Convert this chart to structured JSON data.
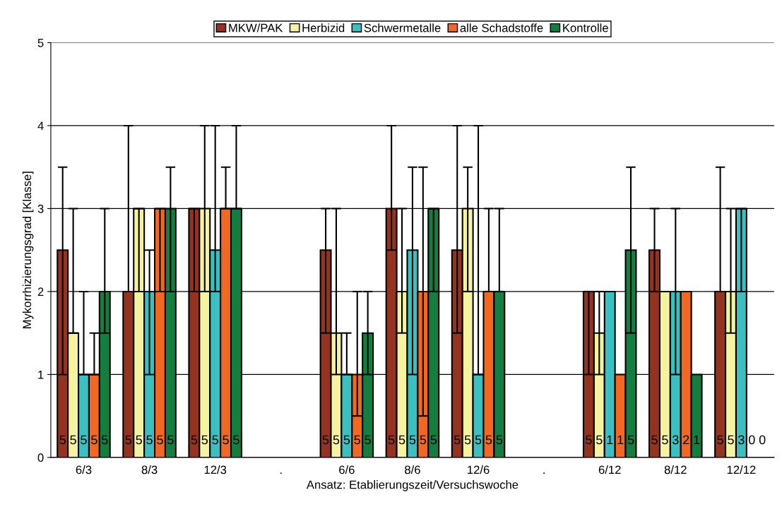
{
  "chart_data": {
    "type": "bar",
    "categories": [
      "6/3",
      "8/3",
      "12/3",
      ".",
      "6/6",
      "8/6",
      "12/6",
      ".",
      "6/12",
      "8/12",
      "12/12"
    ],
    "xlabel": "Ansatz: Etablierungszeit/Versuchswoche",
    "ylabel": "Mykorrhizierungsgrad [Klasse]",
    "ylim": [
      0,
      5
    ],
    "yticks": [
      0,
      1,
      2,
      3,
      4,
      5
    ],
    "grid": "y",
    "legend": "top",
    "series": [
      {
        "name": "MKW/PAK",
        "color": "#943420",
        "values": [
          2.5,
          2,
          3,
          null,
          2.5,
          3,
          2.5,
          null,
          2,
          2.5,
          2
        ],
        "errors": [
          [
            1,
            3.5
          ],
          [
            2,
            4
          ],
          [
            2,
            3
          ],
          null,
          [
            1.5,
            3
          ],
          [
            2.5,
            4
          ],
          [
            1.5,
            4
          ],
          null,
          [
            1,
            2
          ],
          [
            2,
            3
          ],
          [
            2,
            3.5
          ]
        ]
      },
      {
        "name": "Herbizid",
        "color": "#f5f2a0",
        "values": [
          1.5,
          3,
          3,
          null,
          1.5,
          2,
          3,
          null,
          1.5,
          2,
          2
        ],
        "errors": [
          [
            1.5,
            3
          ],
          [
            2,
            3
          ],
          [
            2,
            4
          ],
          null,
          [
            1,
            3
          ],
          [
            1.5,
            3
          ],
          [
            2,
            3.5
          ],
          null,
          [
            1,
            2
          ],
          null,
          [
            1.5,
            3
          ]
        ]
      },
      {
        "name": "Schwermetalle",
        "color": "#3cbfc0",
        "values": [
          1,
          2,
          2.5,
          null,
          1,
          2.5,
          1,
          null,
          2,
          2,
          3
        ],
        "errors": [
          [
            1,
            2
          ],
          [
            1,
            2.5
          ],
          [
            2,
            4
          ],
          null,
          [
            1,
            1.5
          ],
          [
            1,
            3.5
          ],
          [
            1,
            4
          ],
          null,
          null,
          [
            1,
            3
          ],
          [
            2,
            3
          ]
        ]
      },
      {
        "name": "alle Schadstoffe",
        "color": "#f26722",
        "values": [
          1,
          3,
          3,
          null,
          1,
          2,
          2,
          null,
          1,
          2,
          null
        ],
        "errors": [
          [
            1,
            1.5
          ],
          [
            2,
            3
          ],
          [
            3,
            3.5
          ],
          null,
          [
            0.5,
            2
          ],
          [
            0.5,
            3.5
          ],
          [
            2,
            3
          ],
          null,
          null,
          null,
          null
        ]
      },
      {
        "name": "Kontrolle",
        "color": "#137e3f",
        "values": [
          2,
          3,
          3,
          null,
          1.5,
          3,
          2,
          null,
          2.5,
          1,
          null
        ],
        "errors": [
          [
            1.5,
            3
          ],
          [
            2,
            3.5
          ],
          [
            3,
            4
          ],
          null,
          [
            1,
            2
          ],
          [
            2,
            3
          ],
          [
            2,
            3
          ],
          null,
          [
            1.5,
            3.5
          ],
          null,
          null
        ]
      }
    ],
    "annotations": [
      "5",
      "5",
      "5",
      "5",
      "5",
      "5",
      "5",
      "5",
      "5",
      "5",
      "5",
      "5",
      "5",
      "5",
      "5",
      "5",
      "5",
      "5",
      "5",
      "5",
      "5",
      "5",
      "5",
      "5",
      "5",
      "5",
      "5",
      "5",
      "5",
      "5",
      "5",
      "5",
      "1",
      "1",
      "5",
      "5",
      "5",
      "3",
      "2",
      "1",
      "5",
      "5",
      "3",
      "0",
      "0"
    ]
  }
}
